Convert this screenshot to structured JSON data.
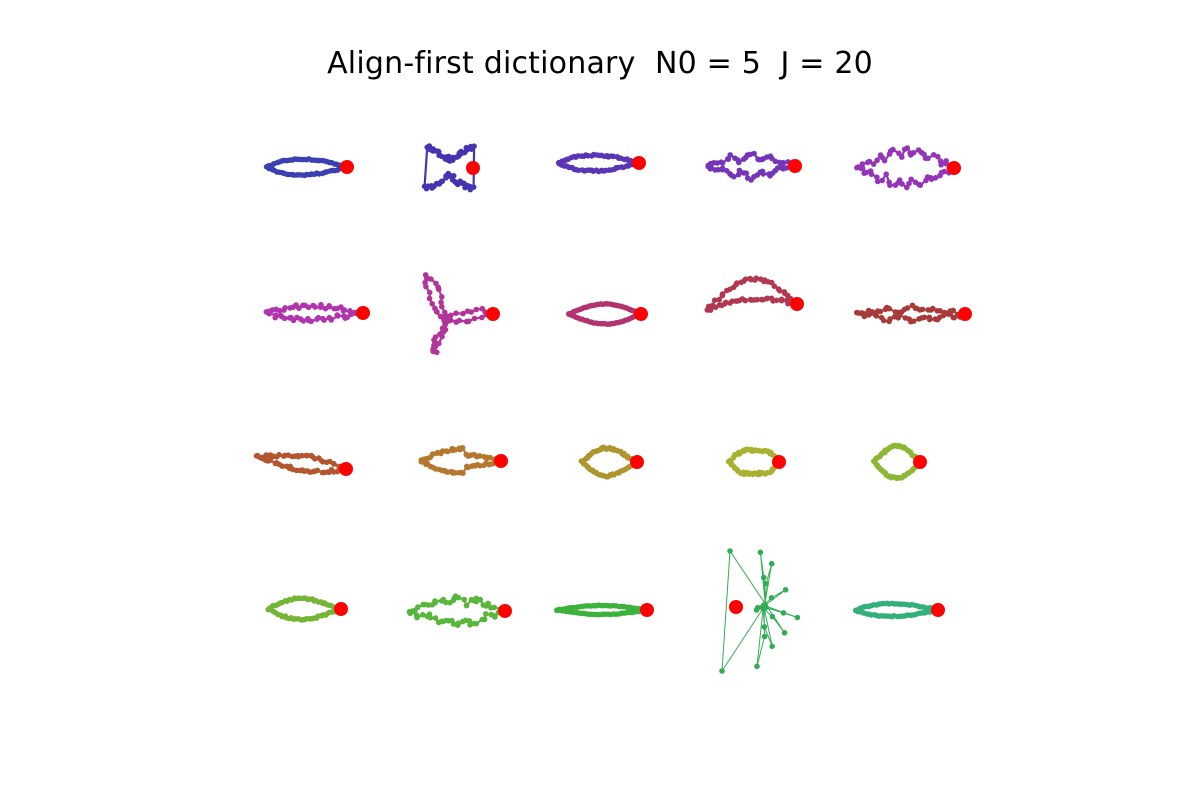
{
  "title": "Align-first dictionary  N0 = 5  J = 20",
  "chart_data": {
    "type": "scatter",
    "title": "Align-first dictionary  N0 = 5  J = 20",
    "rows": 4,
    "cols": 5,
    "grid": false,
    "axes_visible": false,
    "anchor_color": "#ff0000",
    "shapes": [
      {
        "color": "#3b3fb0",
        "kind": "teardrop",
        "len": 80,
        "wid": 20,
        "jit": 0.6
      },
      {
        "color": "#4434b2",
        "kind": "ribbon",
        "len": 47,
        "wid": 40,
        "jit": 2.2
      },
      {
        "color": "#5a35b6",
        "kind": "teardrop",
        "len": 80,
        "wid": 20,
        "jit": 0.8
      },
      {
        "color": "#7435b8",
        "kind": "leaf",
        "len": 88,
        "wid": 26,
        "jit": 1.6
      },
      {
        "color": "#9435b8",
        "kind": "spiky",
        "len": 96,
        "wid": 38,
        "jit": 2.0
      },
      {
        "color": "#b035ad",
        "kind": "teardrop",
        "len": 95,
        "wid": 17,
        "jit": 2.2
      },
      {
        "color": "#b1349a",
        "kind": "propeller",
        "len": 68,
        "wid": 36,
        "jit": 1.5
      },
      {
        "color": "#b23370",
        "kind": "ellipse",
        "len": 72,
        "wid": 20,
        "jit": 0.3
      },
      {
        "color": "#b23852",
        "kind": "vee",
        "len": 90,
        "wid": 20,
        "jit": 1.5
      },
      {
        "color": "#a83a3a",
        "kind": "leaf",
        "len": 108,
        "wid": 14,
        "jit": 2.0
      },
      {
        "color": "#b35630",
        "kind": "wedge",
        "len": 88,
        "wid": 18,
        "jit": 1.5
      },
      {
        "color": "#b5772e",
        "kind": "bulb",
        "len": 80,
        "wid": 22,
        "jit": 1.2
      },
      {
        "color": "#ad962c",
        "kind": "heart",
        "len": 55,
        "wid": 32,
        "jit": 1.0
      },
      {
        "color": "#a9b130",
        "kind": "crescent",
        "len": 50,
        "wid": 38,
        "jit": 1.3
      },
      {
        "color": "#8cb735",
        "kind": "ellipse",
        "len": 46,
        "wid": 32,
        "jit": 0.8
      },
      {
        "color": "#74b535",
        "kind": "pear",
        "len": 72,
        "wid": 26,
        "jit": 0.8
      },
      {
        "color": "#58b63a",
        "kind": "scribble",
        "len": 95,
        "wid": 30,
        "jit": 2.5
      },
      {
        "color": "#3cb23c",
        "kind": "ellipse",
        "len": 90,
        "wid": 9,
        "jit": 0.3
      },
      {
        "color": "#33ad55",
        "kind": "burst",
        "len": 54,
        "wid": 58,
        "jit": 3.0
      },
      {
        "color": "#33b07a",
        "kind": "teardrop",
        "len": 82,
        "wid": 16,
        "jit": 0.5
      }
    ]
  }
}
